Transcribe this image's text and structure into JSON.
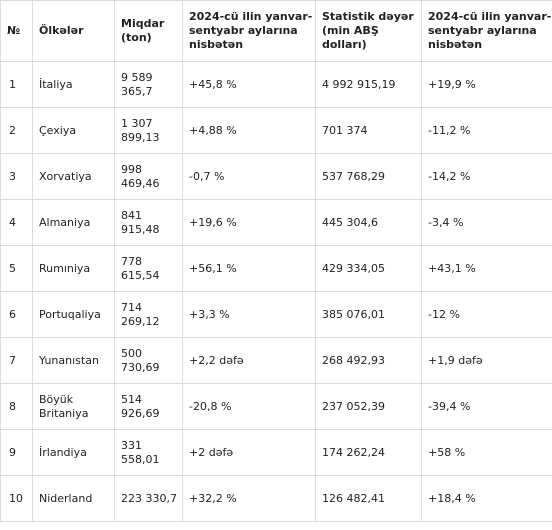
{
  "table": {
    "headers": [
      "№",
      "Ölkələr",
      "Miqdar (ton)",
      "2024-cü ilin yanvar-sentyabr aylarına nisbətən",
      "Statistik dəyər (min ABŞ dolları)",
      "2024-cü ilin yanvar-sentyabr aylarına nisbətən"
    ],
    "rows": [
      [
        "1",
        "İtaliya",
        "9 589 365,7",
        "+45,8 %",
        "4 992 915,19",
        "+19,9 %"
      ],
      [
        "2",
        "Çexiya",
        "1 307 899,13",
        "+4,88 %",
        "701 374",
        "-11,2 %"
      ],
      [
        "3",
        "Xorvatiya",
        "998 469,46",
        "-0,7 %",
        "537 768,29",
        "-14,2 %"
      ],
      [
        "4",
        "Almaniya",
        "841 915,48",
        "+19,6 %",
        "445 304,6",
        "-3,4 %"
      ],
      [
        "5",
        "Rumıniya",
        "778 615,54",
        "+56,1 %",
        "429 334,05",
        "+43,1 %"
      ],
      [
        "6",
        "Portuqaliya",
        "714 269,12",
        "+3,3 %",
        "385 076,01",
        "-12 %"
      ],
      [
        "7",
        "Yunanıstan",
        "500 730,69",
        "+2,2 dəfə",
        "268 492,93",
        "+1,9 dəfə"
      ],
      [
        "8",
        "Böyük Britaniya",
        "514 926,69",
        "-20,8 %",
        "237 052,39",
        "-39,4 %"
      ],
      [
        "9",
        "İrlandiya",
        "331 558,01",
        "+2 dəfə",
        "174 262,24",
        "+58 %"
      ],
      [
        "10",
        "Niderland",
        "223 330,7",
        "+32,2 %",
        "126 482,41",
        "+18,4 %"
      ]
    ]
  }
}
